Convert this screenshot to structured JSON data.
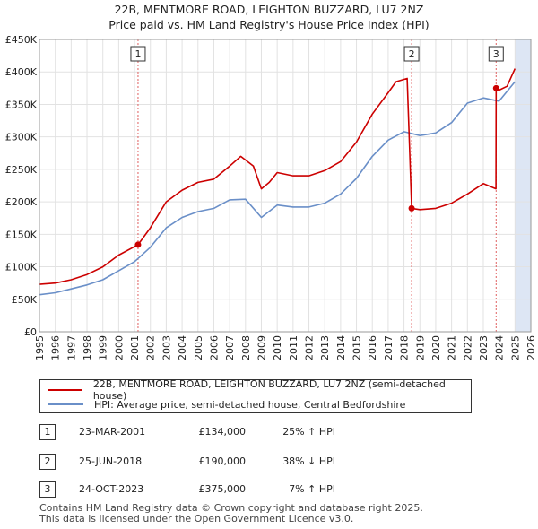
{
  "title_line1": "22B, MENTMORE ROAD, LEIGHTON BUZZARD, LU7 2NZ",
  "title_line2": "Price paid vs. HM Land Registry's House Price Index (HPI)",
  "colors": {
    "property": "#cc0000",
    "hpi": "#6a8fc8",
    "shade": "#dde6f4",
    "vline": "#e06060"
  },
  "chart_data": {
    "type": "line",
    "xlim": [
      1995,
      2026
    ],
    "ylim": [
      0,
      450000
    ],
    "yticks": [
      0,
      50000,
      100000,
      150000,
      200000,
      250000,
      300000,
      350000,
      400000,
      450000
    ],
    "ytick_labels": [
      "£0",
      "£50K",
      "£100K",
      "£150K",
      "£200K",
      "£250K",
      "£300K",
      "£350K",
      "£400K",
      "£450K"
    ],
    "xticks": [
      1995,
      1996,
      1997,
      1998,
      1999,
      2000,
      2001,
      2002,
      2003,
      2004,
      2005,
      2006,
      2007,
      2008,
      2009,
      2010,
      2011,
      2012,
      2013,
      2014,
      2015,
      2016,
      2017,
      2018,
      2019,
      2020,
      2021,
      2022,
      2023,
      2024,
      2025,
      2026
    ],
    "future_shade_from": 2025.0,
    "series": [
      {
        "name": "22B, MENTMORE ROAD, LEIGHTON BUZZARD, LU7 2NZ (semi-detached house)",
        "x": [
          1995,
          1996,
          1997,
          1998,
          1999,
          2000,
          2001.22,
          2002,
          2003,
          2004,
          2005,
          2006,
          2007,
          2007.7,
          2008.5,
          2009,
          2009.5,
          2010,
          2011,
          2012,
          2013,
          2014,
          2015,
          2016,
          2017,
          2017.5,
          2018.2,
          2018.48,
          2019,
          2020,
          2021,
          2022,
          2023,
          2023.8,
          2023.81,
          2024,
          2024.5,
          2025
        ],
        "values": [
          73000,
          75000,
          80000,
          88000,
          100000,
          118000,
          134000,
          160000,
          200000,
          218000,
          230000,
          235000,
          255000,
          270000,
          255000,
          220000,
          230000,
          245000,
          240000,
          240000,
          248000,
          262000,
          292000,
          335000,
          368000,
          385000,
          390000,
          190000,
          188000,
          190000,
          198000,
          212000,
          228000,
          220000,
          375000,
          372000,
          378000,
          405000
        ]
      },
      {
        "name": "HPI: Average price, semi-detached house, Central Bedfordshire",
        "x": [
          1995,
          1996,
          1997,
          1998,
          1999,
          2000,
          2001,
          2002,
          2003,
          2004,
          2005,
          2006,
          2007,
          2008,
          2009,
          2010,
          2011,
          2012,
          2013,
          2014,
          2015,
          2016,
          2017,
          2018,
          2019,
          2020,
          2021,
          2022,
          2023,
          2024,
          2025
        ],
        "values": [
          57000,
          60000,
          66000,
          72000,
          80000,
          94000,
          108000,
          130000,
          160000,
          176000,
          185000,
          190000,
          203000,
          204000,
          176000,
          195000,
          192000,
          192000,
          198000,
          212000,
          236000,
          270000,
          295000,
          308000,
          302000,
          306000,
          322000,
          352000,
          360000,
          355000,
          385000
        ]
      }
    ],
    "transactions": [
      {
        "label": "1",
        "x": 2001.22,
        "value": 134000
      },
      {
        "label": "2",
        "x": 2018.48,
        "value": 190000
      },
      {
        "label": "3",
        "x": 2023.81,
        "value": 375000
      }
    ]
  },
  "legend": {
    "property": "22B, MENTMORE ROAD, LEIGHTON BUZZARD, LU7 2NZ (semi-detached house)",
    "hpi": "HPI: Average price, semi-detached house, Central Bedfordshire"
  },
  "sales": [
    {
      "num": "1",
      "date": "23-MAR-2001",
      "price": "£134,000",
      "hpi": "25% ↑ HPI"
    },
    {
      "num": "2",
      "date": "25-JUN-2018",
      "price": "£190,000",
      "hpi": "38% ↓ HPI"
    },
    {
      "num": "3",
      "date": "24-OCT-2023",
      "price": "£375,000",
      "hpi": "7% ↑ HPI"
    }
  ],
  "footer": {
    "line1": "Contains HM Land Registry data © Crown copyright and database right 2025.",
    "line2": "This data is licensed under the Open Government Licence v3.0."
  }
}
